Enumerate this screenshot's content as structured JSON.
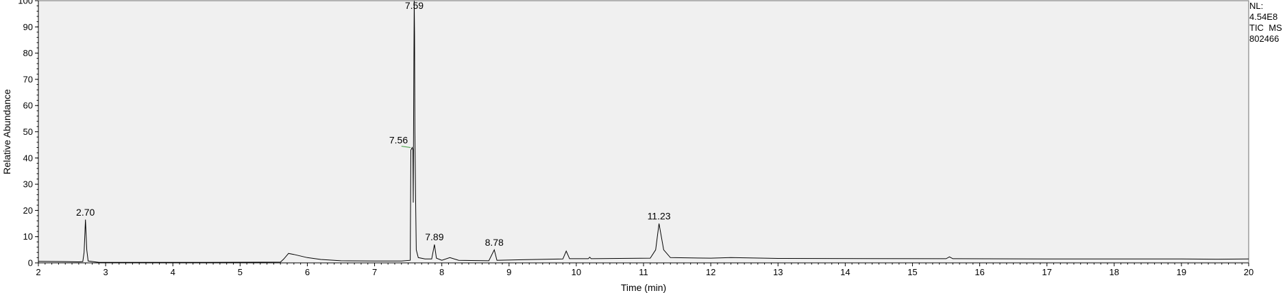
{
  "chart_data": {
    "type": "line",
    "xlabel": "Time (min)",
    "ylabel": "Relative Abundance",
    "xlim": [
      2,
      20
    ],
    "ylim": [
      0,
      100
    ],
    "x_ticks": [
      2,
      3,
      4,
      5,
      6,
      7,
      8,
      9,
      10,
      11,
      12,
      13,
      14,
      15,
      16,
      17,
      18,
      19,
      20
    ],
    "y_ticks": [
      0,
      10,
      20,
      30,
      40,
      50,
      60,
      70,
      80,
      90,
      100
    ],
    "grid": false,
    "plot_background": "#f0f0f0",
    "line_color": "#000000",
    "annotation": {
      "nl_label": "NL:",
      "nl_value": "4.54E8",
      "trace_type": "TIC",
      "trace_detector": "MS",
      "sample_id": "802466"
    },
    "peak_labels": [
      {
        "x": 2.7,
        "y": 16.5,
        "label": "2.70"
      },
      {
        "x": 7.56,
        "y": 44.0,
        "label": "7.56"
      },
      {
        "x": 7.59,
        "y": 100.0,
        "label": "7.59"
      },
      {
        "x": 7.89,
        "y": 7.0,
        "label": "7.89"
      },
      {
        "x": 8.78,
        "y": 5.0,
        "label": "8.78"
      },
      {
        "x": 11.23,
        "y": 15.0,
        "label": "11.23"
      }
    ],
    "series": [
      {
        "values": [
          [
            2.0,
            0.6
          ],
          [
            2.4,
            0.5
          ],
          [
            2.6,
            0.4
          ],
          [
            2.66,
            0.5
          ],
          [
            2.68,
            4.0
          ],
          [
            2.7,
            16.5
          ],
          [
            2.72,
            5.0
          ],
          [
            2.74,
            0.7
          ],
          [
            2.9,
            0.2
          ],
          [
            3.5,
            0.2
          ],
          [
            4.5,
            0.2
          ],
          [
            5.6,
            0.3
          ],
          [
            5.65,
            1.5
          ],
          [
            5.72,
            3.6
          ],
          [
            5.8,
            3.2
          ],
          [
            6.0,
            2.0
          ],
          [
            6.2,
            1.3
          ],
          [
            6.5,
            0.8
          ],
          [
            7.0,
            0.7
          ],
          [
            7.4,
            0.7
          ],
          [
            7.53,
            1.0
          ],
          [
            7.54,
            43.0
          ],
          [
            7.56,
            44.0
          ],
          [
            7.57,
            43.0
          ],
          [
            7.575,
            23.0
          ],
          [
            7.58,
            55.0
          ],
          [
            7.59,
            100.0
          ],
          [
            7.595,
            87.0
          ],
          [
            7.6,
            50.0
          ],
          [
            7.61,
            25.0
          ],
          [
            7.62,
            5.0
          ],
          [
            7.65,
            2.0
          ],
          [
            7.75,
            1.5
          ],
          [
            7.85,
            1.5
          ],
          [
            7.89,
            7.0
          ],
          [
            7.92,
            1.8
          ],
          [
            8.0,
            1.0
          ],
          [
            8.12,
            2.0
          ],
          [
            8.25,
            1.0
          ],
          [
            8.7,
            0.8
          ],
          [
            8.78,
            5.0
          ],
          [
            8.82,
            1.0
          ],
          [
            9.2,
            1.2
          ],
          [
            9.8,
            1.5
          ],
          [
            9.85,
            4.5
          ],
          [
            9.9,
            1.6
          ],
          [
            10.18,
            1.6
          ],
          [
            10.2,
            2.2
          ],
          [
            10.22,
            1.6
          ],
          [
            11.1,
            1.8
          ],
          [
            11.18,
            5.0
          ],
          [
            11.23,
            15.0
          ],
          [
            11.3,
            5.0
          ],
          [
            11.4,
            2.0
          ],
          [
            12.0,
            1.8
          ],
          [
            12.3,
            2.0
          ],
          [
            13.0,
            1.7
          ],
          [
            15.5,
            1.6
          ],
          [
            15.55,
            2.3
          ],
          [
            15.6,
            1.6
          ],
          [
            17.0,
            1.5
          ],
          [
            19.0,
            1.5
          ],
          [
            19.5,
            1.4
          ],
          [
            20.0,
            1.5
          ]
        ]
      }
    ],
    "shoulder_segment": [
      [
        7.4,
        44.5
      ],
      [
        7.535,
        44.0
      ]
    ],
    "shoulder_color": "#3a9a3a"
  }
}
